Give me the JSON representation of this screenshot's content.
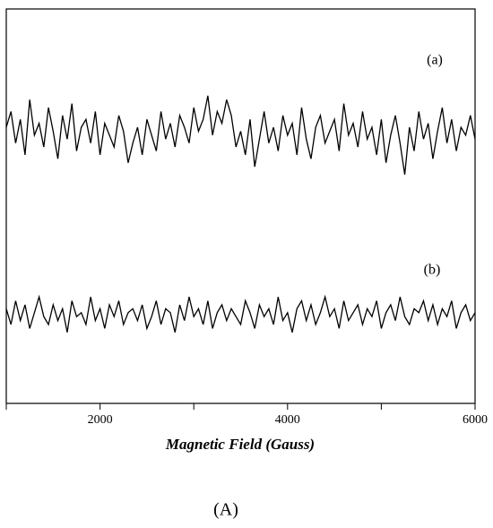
{
  "chart_data": {
    "type": "line",
    "x_label": "Magnetic Field (Gauss)",
    "caption": "(A)",
    "annotations": [
      "(a)",
      "(b)"
    ],
    "xlim": [
      1000,
      6000
    ],
    "xticks": [
      2000,
      4000,
      6000
    ],
    "minor_xticks": [
      1000,
      3000,
      5000
    ],
    "ylim": [
      0,
      100
    ],
    "x": [
      1000,
      1050,
      1100,
      1150,
      1200,
      1250,
      1300,
      1350,
      1400,
      1450,
      1500,
      1550,
      1600,
      1650,
      1700,
      1750,
      1800,
      1850,
      1900,
      1950,
      2000,
      2050,
      2100,
      2150,
      2200,
      2250,
      2300,
      2350,
      2400,
      2450,
      2500,
      2550,
      2600,
      2650,
      2700,
      2750,
      2800,
      2850,
      2900,
      2950,
      3000,
      3050,
      3100,
      3150,
      3200,
      3250,
      3300,
      3350,
      3400,
      3450,
      3500,
      3550,
      3600,
      3650,
      3700,
      3750,
      3800,
      3850,
      3900,
      3950,
      4000,
      4050,
      4100,
      4150,
      4200,
      4250,
      4300,
      4350,
      4400,
      4450,
      4500,
      4550,
      4600,
      4650,
      4700,
      4750,
      4800,
      4850,
      4900,
      4950,
      5000,
      5050,
      5100,
      5150,
      5200,
      5250,
      5300,
      5350,
      5400,
      5450,
      5500,
      5550,
      5600,
      5650,
      5700,
      5750,
      5800,
      5850,
      5900,
      5950,
      6000
    ],
    "series": [
      {
        "color": "#000000",
        "values": [
          70,
          74,
          66,
          72,
          63,
          77,
          68,
          71,
          65,
          75,
          69,
          62,
          73,
          67,
          76,
          64,
          70,
          72,
          66,
          74,
          63,
          71,
          68,
          65,
          73,
          69,
          61,
          66,
          70,
          63,
          72,
          68,
          64,
          74,
          67,
          71,
          65,
          73,
          70,
          66,
          75,
          69,
          72,
          78,
          68,
          74,
          71,
          77,
          73,
          65,
          69,
          63,
          72,
          60,
          67,
          74,
          66,
          70,
          64,
          73,
          68,
          71,
          63,
          75,
          67,
          62,
          70,
          73,
          66,
          69,
          72,
          64,
          76,
          68,
          71,
          65,
          74,
          67,
          70,
          63,
          72,
          61,
          68,
          73,
          66,
          58,
          70,
          64,
          74,
          67,
          71,
          62,
          69,
          75,
          66,
          72,
          64,
          70,
          68,
          73,
          67
        ]
      },
      {
        "color": "#000000",
        "values": [
          24,
          20,
          26,
          21,
          25,
          19,
          23,
          27,
          22,
          20,
          25,
          21,
          24,
          18,
          26,
          22,
          23,
          20,
          27,
          21,
          24,
          19,
          25,
          22,
          26,
          20,
          23,
          24,
          21,
          25,
          19,
          22,
          26,
          20,
          24,
          23,
          18,
          25,
          21,
          27,
          22,
          24,
          20,
          26,
          19,
          23,
          25,
          21,
          24,
          22,
          20,
          26,
          23,
          19,
          25,
          22,
          24,
          20,
          27,
          21,
          23,
          18,
          24,
          26,
          21,
          25,
          20,
          23,
          27,
          22,
          24,
          19,
          26,
          21,
          23,
          25,
          20,
          24,
          22,
          26,
          19,
          23,
          25,
          21,
          27,
          22,
          20,
          24,
          23,
          26,
          21,
          25,
          20,
          24,
          22,
          26,
          19,
          23,
          25,
          21,
          23
        ]
      }
    ]
  }
}
